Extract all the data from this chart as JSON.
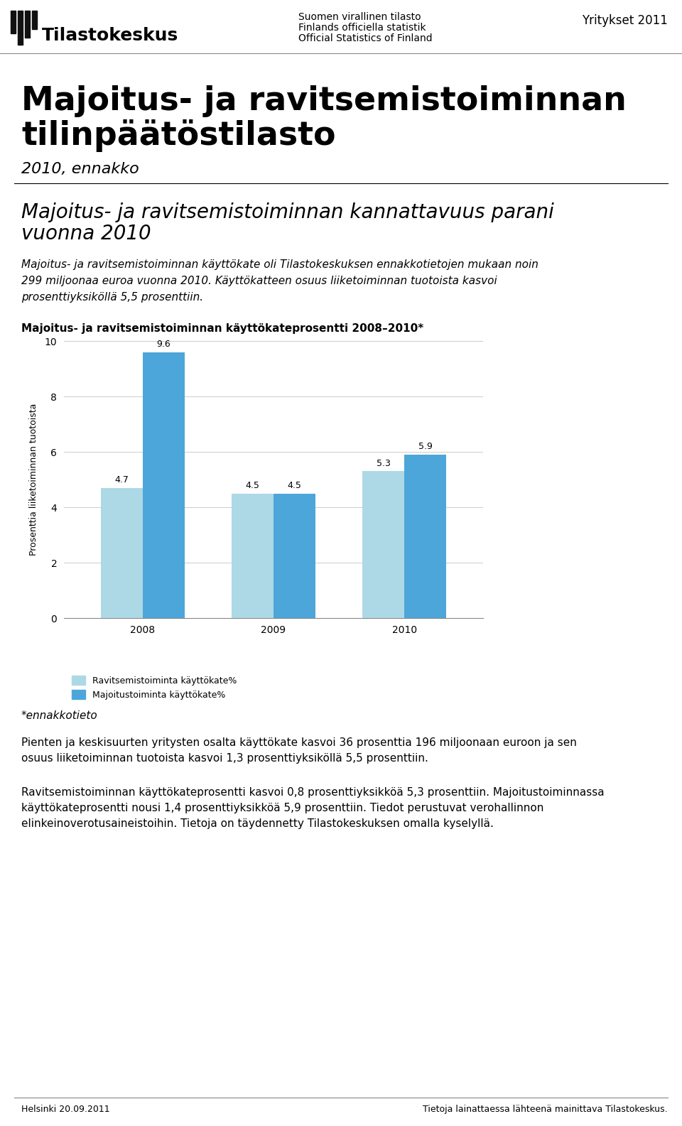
{
  "header_left_title": "Tilastokeskus",
  "header_center_line1": "Suomen virallinen tilasto",
  "header_center_line2": "Finlands officiella statistik",
  "header_center_line3": "Official Statistics of Finland",
  "header_right": "Yritykset 2011",
  "main_title_line1": "Majoitus- ja ravitsemistoiminnan",
  "main_title_line2": "tilinpäätöstilasto",
  "subtitle": "2010, ennakko",
  "section_title_line1": "Majoitus- ja ravitsemistoiminnan kannattavuus parani",
  "section_title_line2": "vuonna 2010",
  "section_body_line1": "Majoitus- ja ravitsemistoiminnan käyttökate oli Tilastokeskuksen ennakkotietojen mukaan noin",
  "section_body_line2": "299 miljoonaa euroa vuonna 2010. Käyttökatteen osuus liiketoiminnan tuotoista kasvoi",
  "section_body_line3": "prosenttiyksiköllä 5,5 prosenttiin.",
  "chart_title": "Majoitus- ja ravitsemistoiminnan käyttökateprosentti 2008–2010*",
  "years": [
    "2008",
    "2009",
    "2010"
  ],
  "ravitsemis_values": [
    4.7,
    4.5,
    5.3
  ],
  "majoitus_values": [
    9.6,
    4.5,
    5.9
  ],
  "ravitsemis_color": "#add8e6",
  "majoitus_color": "#4da6d9",
  "ylabel": "Prosenttia liiketoiminnan tuotoista",
  "ylim": [
    0,
    10
  ],
  "yticks": [
    0,
    2,
    4,
    6,
    8,
    10
  ],
  "legend_ravitsemis": "Ravitsemistoiminta käyttökate%",
  "legend_majoitus": "Majoitustoiminta käyttökate%",
  "footnote": "*ennakkotieto",
  "body2_line1": "Pienten ja keskisuurten yritysten osalta käyttökate kasvoi 36 prosenttia 196 miljoonaan euroon ja sen",
  "body2_line2": "osuus liiketoiminnan tuotoista kasvoi 1,3 prosenttiyksiköllä 5,5 prosenttiin.",
  "body3_line1": "Ravitsemistoiminnan käyttökateprosentti kasvoi 0,8 prosenttiyksikköä 5,3 prosenttiin. Majoitustoiminnassa",
  "body3_line2": "käyttökateprosentti nousi 1,4 prosenttiyksikköä 5,9 prosenttiin. Tiedot perustuvat verohallinnon",
  "body3_line3": "elinkeinoverotusaineistoihin. Tietoja on täydennetty Tilastokeskuksen omalla kyselyllä.",
  "footer_left": "Helsinki 20.09.2011",
  "footer_right": "Tietoja lainattaessa lähteenä mainittava Tilastokeskus.",
  "bg_color": "#ffffff",
  "text_color": "#000000",
  "grid_color": "#cccccc"
}
